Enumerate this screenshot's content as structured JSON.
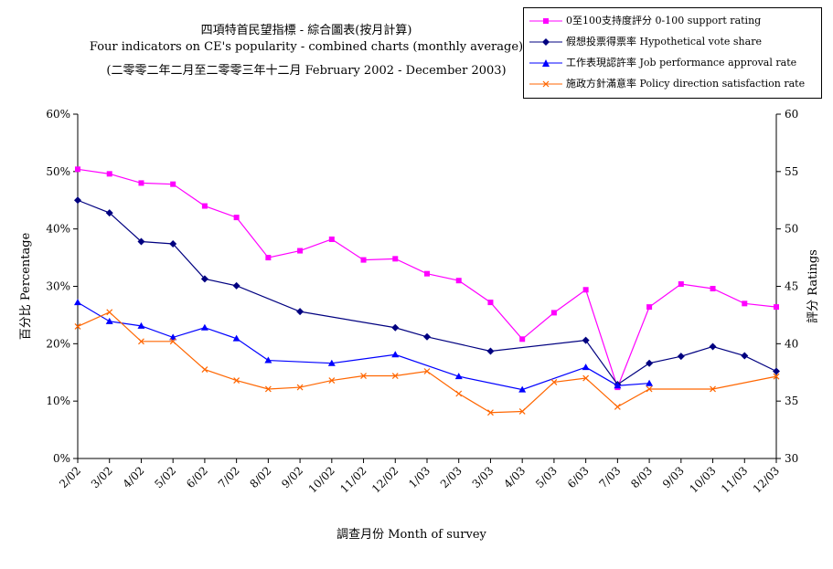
{
  "chart_data": {
    "type": "line",
    "title": "四項特首民望指標 - 綜合圖表(按月計算)",
    "subtitle": "Four indicators on CE's popularity - combined charts (monthly average)",
    "subtitle2": "(二零零二年二月至二零零三年十二月 February 2002 - December 2003)",
    "xlabel": "調查月份 Month of survey",
    "ylabel_left": "百分比 Percentage",
    "ylabel_right": "評分 Ratings",
    "left_ylim": [
      0,
      60
    ],
    "left_ticks": [
      "0%",
      "10%",
      "20%",
      "30%",
      "40%",
      "50%",
      "60%"
    ],
    "right_ylim": [
      30,
      60
    ],
    "right_ticks": [
      "30",
      "35",
      "40",
      "45",
      "50",
      "55",
      "60"
    ],
    "categories": [
      "2/02",
      "3/02",
      "4/02",
      "5/02",
      "6/02",
      "7/02",
      "8/02",
      "9/02",
      "10/02",
      "11/02",
      "12/02",
      "1/03",
      "2/03",
      "3/03",
      "4/03",
      "5/03",
      "6/03",
      "7/03",
      "8/03",
      "9/03",
      "10/03",
      "11/03",
      "12/03"
    ],
    "legend_position": "top-right",
    "series": [
      {
        "name": "0至100支持度評分 0-100 support rating",
        "axis": "right",
        "color": "#ff00ff",
        "marker": "square",
        "values": [
          55.2,
          54.8,
          54.0,
          53.9,
          52.0,
          51.0,
          47.5,
          48.1,
          49.1,
          47.3,
          47.4,
          46.1,
          45.5,
          43.6,
          40.4,
          42.7,
          44.7,
          36.2,
          43.2,
          45.2,
          44.8,
          43.5,
          43.2
        ]
      },
      {
        "name": "假想投票得票率 Hypothetical vote share",
        "axis": "left",
        "color": "#000080",
        "marker": "diamond",
        "values": [
          45.0,
          42.8,
          37.8,
          37.4,
          31.3,
          30.1,
          null,
          25.6,
          null,
          null,
          22.8,
          21.2,
          null,
          18.7,
          null,
          null,
          20.6,
          12.9,
          16.6,
          17.8,
          19.5,
          17.9,
          15.2
        ]
      },
      {
        "name": "工作表現認許率 Job performance approval rate",
        "axis": "left",
        "color": "#0000ff",
        "marker": "triangle",
        "values": [
          27.2,
          23.9,
          23.1,
          21.1,
          22.8,
          20.9,
          17.1,
          null,
          16.6,
          null,
          18.1,
          null,
          14.3,
          null,
          12.0,
          null,
          15.9,
          12.7,
          13.1,
          null,
          null,
          null,
          null
        ]
      },
      {
        "name": "施政方針滿意率 Policy direction satisfaction rate",
        "axis": "left",
        "color": "#ff6600",
        "marker": "x",
        "values": [
          23.0,
          25.5,
          20.4,
          20.4,
          15.5,
          13.6,
          12.1,
          12.4,
          13.6,
          14.4,
          14.4,
          15.2,
          11.3,
          8.0,
          8.2,
          13.3,
          14.0,
          9.0,
          12.1,
          null,
          12.1,
          null,
          14.3
        ]
      }
    ]
  }
}
